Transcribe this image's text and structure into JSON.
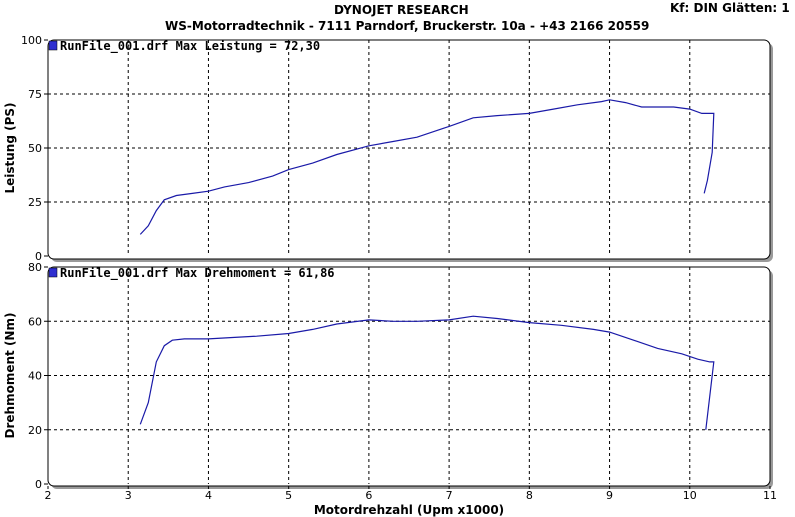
{
  "header": {
    "title": "DYNOJET RESEARCH",
    "subtitle": "WS-Motorradtechnik - 7111 Parndorf, Bruckerstr. 10a - +43 2166 20559",
    "settings": "Kf: DIN  Glätten: 1"
  },
  "colors": {
    "curve": "#1a1aa8",
    "legend_box": "#2f2fd0",
    "grid": "#000000"
  },
  "chart_data": [
    {
      "type": "line",
      "legend": "RunFile_001.drf Max Leistung = 72,30",
      "xlabel": "",
      "ylabel": "Leistung (PS)",
      "xlim": [
        2,
        11
      ],
      "ylim": [
        0,
        100
      ],
      "xticks": [],
      "yticks": [
        "0",
        "25",
        "50",
        "75",
        "100"
      ],
      "grid": true,
      "series": [
        {
          "x": [
            3.15,
            3.25,
            3.35,
            3.45,
            3.6,
            3.8,
            4.0,
            4.2,
            4.5,
            4.8,
            5.0,
            5.3,
            5.6,
            6.0,
            6.3,
            6.6,
            7.0,
            7.3,
            7.6,
            8.0,
            8.3,
            8.6,
            8.9,
            9.0,
            9.2,
            9.4,
            9.6,
            9.8,
            10.0,
            10.15,
            10.25,
            10.3,
            10.28,
            10.22,
            10.18
          ],
          "y": [
            10,
            14,
            21,
            26,
            28,
            29,
            30,
            32,
            34,
            37,
            40,
            43,
            47,
            51,
            53,
            55,
            60,
            64,
            65,
            66,
            68,
            70,
            71.5,
            72.3,
            71,
            69,
            69,
            69,
            68,
            66,
            66,
            66,
            48,
            35,
            29
          ]
        }
      ]
    },
    {
      "type": "line",
      "legend": "RunFile_001.drf Max Drehmoment = 61,86",
      "xlabel": "Motordrehzahl (Upm x1000)",
      "ylabel": "Drehmoment (Nm)",
      "xlim": [
        2,
        11
      ],
      "ylim": [
        0,
        80
      ],
      "xticks": [
        "2",
        "3",
        "4",
        "5",
        "6",
        "7",
        "8",
        "9",
        "10",
        "11"
      ],
      "yticks": [
        "0",
        "20",
        "40",
        "60",
        "80"
      ],
      "grid": true,
      "series": [
        {
          "x": [
            3.15,
            3.25,
            3.35,
            3.45,
            3.55,
            3.7,
            4.0,
            4.3,
            4.6,
            5.0,
            5.3,
            5.6,
            6.0,
            6.3,
            6.6,
            7.0,
            7.3,
            7.6,
            8.0,
            8.4,
            8.8,
            9.0,
            9.3,
            9.6,
            9.9,
            10.1,
            10.25,
            10.3,
            10.26,
            10.2
          ],
          "y": [
            22,
            30,
            45,
            51,
            53,
            53.5,
            53.5,
            54,
            54.5,
            55.5,
            57,
            59,
            60.5,
            60,
            60,
            60.5,
            61.86,
            61,
            59.5,
            58.5,
            57,
            56,
            53,
            50,
            48,
            46,
            45,
            45,
            35,
            20
          ]
        }
      ]
    }
  ]
}
